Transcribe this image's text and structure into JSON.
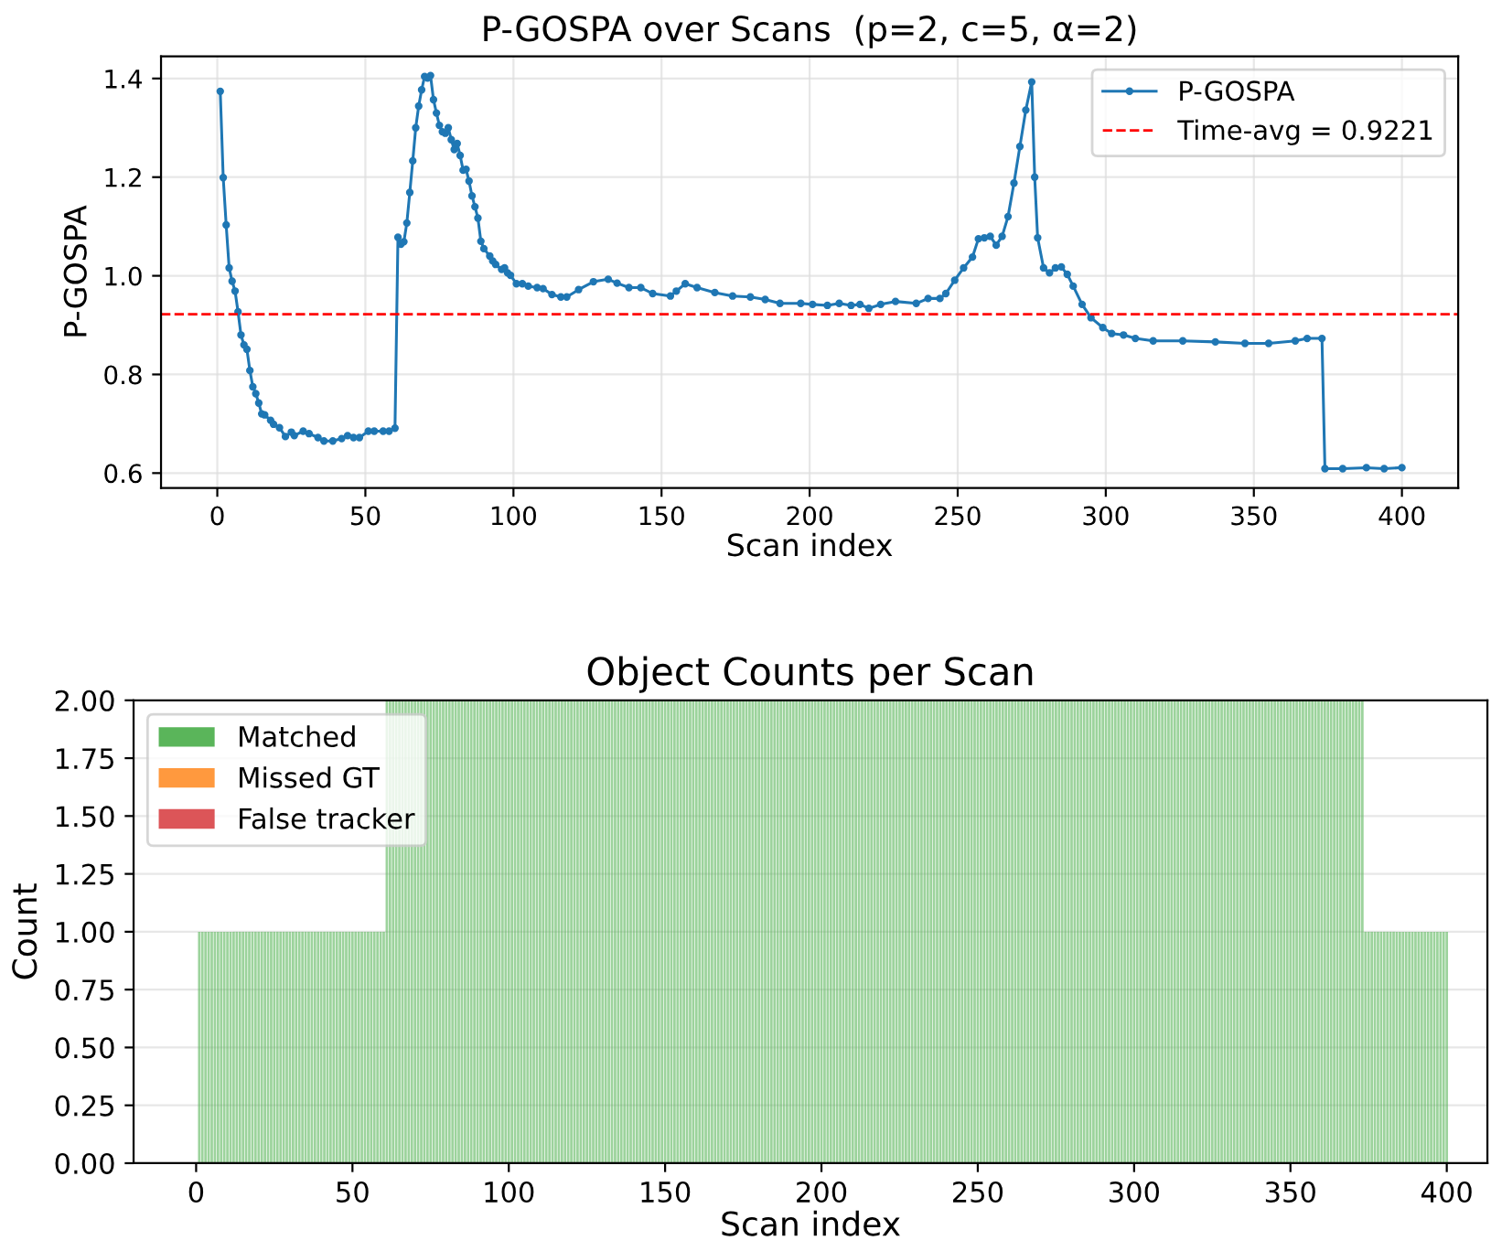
{
  "chart_data": [
    {
      "type": "line",
      "title": "P-GOSPA over Scans  (p=2, c=5, α=2)",
      "xlabel": "Scan index",
      "ylabel": "P-GOSPA",
      "xlim": [
        -19,
        419
      ],
      "xticks": [
        0,
        50,
        100,
        150,
        200,
        250,
        300,
        350,
        400
      ],
      "ylim": [
        0.57,
        1.445
      ],
      "yticks": [
        {
          "value": 0.6,
          "label": "0.6"
        },
        {
          "value": 0.8,
          "label": "0.8"
        },
        {
          "value": 1.0,
          "label": "1.0"
        },
        {
          "value": 1.2,
          "label": "1.2"
        },
        {
          "value": 1.4,
          "label": "1.4"
        }
      ],
      "grid": true,
      "legend": "top right",
      "marker": "circle",
      "line_style": "solid",
      "ref_lines": [
        {
          "axis": "y",
          "value": 0.9221,
          "label": "Time-avg = 0.9221",
          "color": "#ff0000",
          "line_style": "dashed"
        }
      ],
      "series": [
        {
          "name": "P-GOSPA",
          "color": "#1f77b4",
          "x": [
            1,
            2,
            3,
            4,
            5,
            6,
            7,
            8,
            9,
            10,
            11,
            12,
            13,
            14,
            15,
            16,
            18,
            19,
            21,
            23,
            25,
            26,
            29,
            31,
            34,
            36,
            39,
            42,
            44,
            46,
            48,
            51,
            53,
            56,
            58,
            60,
            61,
            62,
            63,
            64,
            65,
            66,
            67,
            68,
            69,
            70,
            71,
            72,
            73,
            74,
            75,
            76,
            77,
            78,
            79,
            80,
            81,
            82,
            83,
            84,
            85,
            86,
            87,
            88,
            89,
            90,
            92,
            93,
            94,
            96,
            97,
            98,
            99,
            101,
            103,
            105,
            108,
            110,
            113,
            116,
            118,
            122,
            127,
            132,
            135,
            139,
            143,
            147,
            153,
            155,
            158,
            162,
            168,
            174,
            180,
            185,
            190,
            197,
            201,
            206,
            210,
            214,
            217,
            220,
            224,
            229,
            236,
            240,
            244,
            246,
            249,
            252,
            255,
            257,
            259,
            261,
            263,
            265,
            267,
            269,
            271,
            273,
            275,
            276,
            277,
            279,
            281,
            283,
            285,
            287,
            289,
            292,
            295,
            299,
            302,
            306,
            310,
            316,
            326,
            337,
            347,
            355,
            364,
            368,
            373,
            374,
            380,
            388,
            394,
            400
          ],
          "values": [
            1.374,
            1.199,
            1.103,
            1.016,
            0.989,
            0.969,
            0.927,
            0.88,
            0.86,
            0.851,
            0.808,
            0.775,
            0.761,
            0.742,
            0.72,
            0.718,
            0.707,
            0.699,
            0.692,
            0.674,
            0.683,
            0.676,
            0.685,
            0.68,
            0.672,
            0.665,
            0.665,
            0.67,
            0.676,
            0.672,
            0.672,
            0.685,
            0.685,
            0.685,
            0.685,
            0.691,
            1.078,
            1.064,
            1.069,
            1.107,
            1.169,
            1.233,
            1.3,
            1.344,
            1.377,
            1.404,
            1.401,
            1.406,
            1.357,
            1.33,
            1.305,
            1.292,
            1.289,
            1.3,
            1.276,
            1.256,
            1.268,
            1.244,
            1.214,
            1.216,
            1.192,
            1.162,
            1.14,
            1.117,
            1.07,
            1.055,
            1.04,
            1.03,
            1.023,
            1.013,
            1.016,
            1.006,
            1.001,
            0.984,
            0.984,
            0.979,
            0.976,
            0.974,
            0.962,
            0.957,
            0.957,
            0.972,
            0.988,
            0.993,
            0.985,
            0.976,
            0.976,
            0.964,
            0.959,
            0.969,
            0.984,
            0.976,
            0.966,
            0.959,
            0.957,
            0.952,
            0.944,
            0.944,
            0.942,
            0.94,
            0.944,
            0.94,
            0.942,
            0.934,
            0.942,
            0.948,
            0.944,
            0.954,
            0.954,
            0.964,
            0.991,
            1.016,
            1.038,
            1.075,
            1.077,
            1.08,
            1.062,
            1.08,
            1.12,
            1.188,
            1.262,
            1.336,
            1.393,
            1.2,
            1.077,
            1.016,
            1.006,
            1.016,
            1.018,
            1.003,
            0.979,
            0.942,
            0.915,
            0.895,
            0.883,
            0.88,
            0.873,
            0.868,
            0.868,
            0.866,
            0.863,
            0.863,
            0.868,
            0.873,
            0.873,
            0.609,
            0.609,
            0.611,
            0.609,
            0.611
          ]
        }
      ]
    },
    {
      "type": "bar",
      "stacked": true,
      "title": "Object Counts per Scan",
      "xlabel": "Scan index",
      "ylabel": "Count",
      "xlim": [
        -20,
        413
      ],
      "xticks": [
        0,
        50,
        100,
        150,
        200,
        250,
        300,
        350,
        400
      ],
      "ylim": [
        0,
        2
      ],
      "yticks": [
        {
          "value": 0,
          "label": "0.00"
        },
        {
          "value": 0.25,
          "label": "0.25"
        },
        {
          "value": 0.5,
          "label": "0.50"
        },
        {
          "value": 0.75,
          "label": "0.75"
        },
        {
          "value": 1,
          "label": "1.00"
        },
        {
          "value": 1.25,
          "label": "1.25"
        },
        {
          "value": 1.5,
          "label": "1.50"
        },
        {
          "value": 1.75,
          "label": "1.75"
        },
        {
          "value": 2,
          "label": "2.00"
        }
      ],
      "grid": "y",
      "legend": "top left",
      "x": [
        1,
        2,
        3,
        4,
        5,
        6,
        7,
        8,
        9,
        10,
        11,
        12,
        13,
        14,
        15,
        16,
        17,
        18,
        19,
        20,
        21,
        22,
        23,
        24,
        25,
        26,
        27,
        28,
        29,
        30,
        31,
        32,
        33,
        34,
        35,
        36,
        37,
        38,
        39,
        40,
        41,
        42,
        43,
        44,
        45,
        46,
        47,
        48,
        49,
        50,
        51,
        52,
        53,
        54,
        55,
        56,
        57,
        58,
        59,
        60,
        61,
        62,
        63,
        64,
        65,
        66,
        67,
        68,
        69,
        70,
        71,
        72,
        73,
        74,
        75,
        76,
        77,
        78,
        79,
        80,
        81,
        82,
        83,
        84,
        85,
        86,
        87,
        88,
        89,
        90,
        91,
        92,
        93,
        94,
        95,
        96,
        97,
        98,
        99,
        100,
        101,
        102,
        103,
        104,
        105,
        106,
        107,
        108,
        109,
        110,
        111,
        112,
        113,
        114,
        115,
        116,
        117,
        118,
        119,
        120,
        121,
        122,
        123,
        124,
        125,
        126,
        127,
        128,
        129,
        130,
        131,
        132,
        133,
        134,
        135,
        136,
        137,
        138,
        139,
        140,
        141,
        142,
        143,
        144,
        145,
        146,
        147,
        148,
        149,
        150,
        151,
        152,
        153,
        154,
        155,
        156,
        157,
        158,
        159,
        160,
        161,
        162,
        163,
        164,
        165,
        166,
        167,
        168,
        169,
        170,
        171,
        172,
        173,
        174,
        175,
        176,
        177,
        178,
        179,
        180,
        181,
        182,
        183,
        184,
        185,
        186,
        187,
        188,
        189,
        190,
        191,
        192,
        193,
        194,
        195,
        196,
        197,
        198,
        199,
        200,
        201,
        202,
        203,
        204,
        205,
        206,
        207,
        208,
        209,
        210,
        211,
        212,
        213,
        214,
        215,
        216,
        217,
        218,
        219,
        220,
        221,
        222,
        223,
        224,
        225,
        226,
        227,
        228,
        229,
        230,
        231,
        232,
        233,
        234,
        235,
        236,
        237,
        238,
        239,
        240,
        241,
        242,
        243,
        244,
        245,
        246,
        247,
        248,
        249,
        250,
        251,
        252,
        253,
        254,
        255,
        256,
        257,
        258,
        259,
        260,
        261,
        262,
        263,
        264,
        265,
        266,
        267,
        268,
        269,
        270,
        271,
        272,
        273,
        274,
        275,
        276,
        277,
        278,
        279,
        280,
        281,
        282,
        283,
        284,
        285,
        286,
        287,
        288,
        289,
        290,
        291,
        292,
        293,
        294,
        295,
        296,
        297,
        298,
        299,
        300,
        301,
        302,
        303,
        304,
        305,
        306,
        307,
        308,
        309,
        310,
        311,
        312,
        313,
        314,
        315,
        316,
        317,
        318,
        319,
        320,
        321,
        322,
        323,
        324,
        325,
        326,
        327,
        328,
        329,
        330,
        331,
        332,
        333,
        334,
        335,
        336,
        337,
        338,
        339,
        340,
        341,
        342,
        343,
        344,
        345,
        346,
        347,
        348,
        349,
        350,
        351,
        352,
        353,
        354,
        355,
        356,
        357,
        358,
        359,
        360,
        361,
        362,
        363,
        364,
        365,
        366,
        367,
        368,
        369,
        370,
        371,
        372,
        373,
        374,
        375,
        376,
        377,
        378,
        379,
        380,
        381,
        382,
        383,
        384,
        385,
        386,
        387,
        388,
        389,
        390,
        391,
        392,
        393,
        394,
        395,
        396,
        397,
        398,
        399,
        400
      ],
      "series": [
        {
          "name": "Matched",
          "color": "#5ab55a",
          "values": [
            1,
            1,
            1,
            1,
            1,
            1,
            1,
            1,
            1,
            1,
            1,
            1,
            1,
            1,
            1,
            1,
            1,
            1,
            1,
            1,
            1,
            1,
            1,
            1,
            1,
            1,
            1,
            1,
            1,
            1,
            1,
            1,
            1,
            1,
            1,
            1,
            1,
            1,
            1,
            1,
            1,
            1,
            1,
            1,
            1,
            1,
            1,
            1,
            1,
            1,
            1,
            1,
            1,
            1,
            1,
            1,
            1,
            1,
            1,
            1,
            2,
            2,
            2,
            2,
            2,
            2,
            2,
            2,
            2,
            2,
            2,
            2,
            2,
            2,
            2,
            2,
            2,
            2,
            2,
            2,
            2,
            2,
            2,
            2,
            2,
            2,
            2,
            2,
            2,
            2,
            2,
            2,
            2,
            2,
            2,
            2,
            2,
            2,
            2,
            2,
            2,
            2,
            2,
            2,
            2,
            2,
            2,
            2,
            2,
            2,
            2,
            2,
            2,
            2,
            2,
            2,
            2,
            2,
            2,
            2,
            2,
            2,
            2,
            2,
            2,
            2,
            2,
            2,
            2,
            2,
            2,
            2,
            2,
            2,
            2,
            2,
            2,
            2,
            2,
            2,
            2,
            2,
            2,
            2,
            2,
            2,
            2,
            2,
            2,
            2,
            2,
            2,
            2,
            2,
            2,
            2,
            2,
            2,
            2,
            2,
            2,
            2,
            2,
            2,
            2,
            2,
            2,
            2,
            2,
            2,
            2,
            2,
            2,
            2,
            2,
            2,
            2,
            2,
            2,
            2,
            2,
            2,
            2,
            2,
            2,
            2,
            2,
            2,
            2,
            2,
            2,
            2,
            2,
            2,
            2,
            2,
            2,
            2,
            2,
            2,
            2,
            2,
            2,
            2,
            2,
            2,
            2,
            2,
            2,
            2,
            2,
            2,
            2,
            2,
            2,
            2,
            2,
            2,
            2,
            2,
            2,
            2,
            2,
            2,
            2,
            2,
            2,
            2,
            2,
            2,
            2,
            2,
            2,
            2,
            2,
            2,
            2,
            2,
            2,
            2,
            2,
            2,
            2,
            2,
            2,
            2,
            2,
            2,
            2,
            2,
            2,
            2,
            2,
            2,
            2,
            2,
            2,
            2,
            2,
            2,
            2,
            2,
            2,
            2,
            2,
            2,
            2,
            2,
            2,
            2,
            2,
            2,
            2,
            2,
            2,
            2,
            2,
            2,
            2,
            2,
            2,
            2,
            2,
            2,
            2,
            2,
            2,
            2,
            2,
            2,
            2,
            2,
            2,
            2,
            2,
            2,
            2,
            2,
            2,
            2,
            2,
            2,
            2,
            2,
            2,
            2,
            2,
            2,
            2,
            2,
            2,
            2,
            2,
            2,
            2,
            2,
            2,
            2,
            2,
            2,
            2,
            2,
            2,
            2,
            2,
            2,
            2,
            2,
            2,
            2,
            2,
            2,
            2,
            2,
            2,
            2,
            2,
            2,
            2,
            2,
            2,
            2,
            2,
            2,
            2,
            2,
            2,
            2,
            2,
            2,
            2,
            2,
            2,
            2,
            2,
            2,
            2,
            2,
            2,
            2,
            2,
            2,
            2,
            2,
            2,
            2,
            2,
            2,
            2,
            2,
            2,
            2,
            2,
            1,
            1,
            1,
            1,
            1,
            1,
            1,
            1,
            1,
            1,
            1,
            1,
            1,
            1,
            1,
            1,
            1,
            1,
            1,
            1,
            1,
            1,
            1,
            1,
            1,
            1,
            1
          ]
        },
        {
          "name": "Missed GT",
          "color": "#ff993e",
          "values": [
            0,
            0,
            0,
            0,
            0,
            0,
            0,
            0,
            0,
            0,
            0,
            0,
            0,
            0,
            0,
            0,
            0,
            0,
            0,
            0,
            0,
            0,
            0,
            0,
            0,
            0,
            0,
            0,
            0,
            0,
            0,
            0,
            0,
            0,
            0,
            0,
            0,
            0,
            0,
            0,
            0,
            0,
            0,
            0,
            0,
            0,
            0,
            0,
            0,
            0,
            0,
            0,
            0,
            0,
            0,
            0,
            0,
            0,
            0,
            0,
            0,
            0,
            0,
            0,
            0,
            0,
            0,
            0,
            0,
            0,
            0,
            0,
            0,
            0,
            0,
            0,
            0,
            0,
            0,
            0,
            0,
            0,
            0,
            0,
            0,
            0,
            0,
            0,
            0,
            0,
            0,
            0,
            0,
            0,
            0,
            0,
            0,
            0,
            0,
            0,
            0,
            0,
            0,
            0,
            0,
            0,
            0,
            0,
            0,
            0,
            0,
            0,
            0,
            0,
            0,
            0,
            0,
            0,
            0,
            0,
            0,
            0,
            0,
            0,
            0,
            0,
            0,
            0,
            0,
            0,
            0,
            0,
            0,
            0,
            0,
            0,
            0,
            0,
            0,
            0,
            0,
            0,
            0,
            0,
            0,
            0,
            0,
            0,
            0,
            0,
            0,
            0,
            0,
            0,
            0,
            0,
            0,
            0,
            0,
            0,
            0,
            0,
            0,
            0,
            0,
            0,
            0,
            0,
            0,
            0,
            0,
            0,
            0,
            0,
            0,
            0,
            0,
            0,
            0,
            0,
            0,
            0,
            0,
            0,
            0,
            0,
            0,
            0,
            0,
            0,
            0,
            0,
            0,
            0,
            0,
            0,
            0,
            0,
            0,
            0,
            0,
            0,
            0,
            0,
            0,
            0,
            0,
            0,
            0,
            0,
            0,
            0,
            0,
            0,
            0,
            0,
            0,
            0,
            0,
            0,
            0,
            0,
            0,
            0,
            0,
            0,
            0,
            0,
            0,
            0,
            0,
            0,
            0,
            0,
            0,
            0,
            0,
            0,
            0,
            0,
            0,
            0,
            0,
            0,
            0,
            0,
            0,
            0,
            0,
            0,
            0,
            0,
            0,
            0,
            0,
            0,
            0,
            0,
            0,
            0,
            0,
            0,
            0,
            0,
            0,
            0,
            0,
            0,
            0,
            0,
            0,
            0,
            0,
            0,
            0,
            0,
            0,
            0,
            0,
            0,
            0,
            0,
            0,
            0,
            0,
            0,
            0,
            0,
            0,
            0,
            0,
            0,
            0,
            0,
            0,
            0,
            0,
            0,
            0,
            0,
            0,
            0,
            0,
            0,
            0,
            0,
            0,
            0,
            0,
            0,
            0,
            0,
            0,
            0,
            0,
            0,
            0,
            0,
            0,
            0,
            0,
            0,
            0,
            0,
            0,
            0,
            0,
            0,
            0,
            0,
            0,
            0,
            0,
            0,
            0,
            0,
            0,
            0,
            0,
            0,
            0,
            0,
            0,
            0,
            0,
            0,
            0,
            0,
            0,
            0,
            0,
            0,
            0,
            0,
            0,
            0,
            0,
            0,
            0,
            0,
            0,
            0,
            0,
            0,
            0,
            0,
            0,
            0,
            0,
            0,
            0,
            0,
            0,
            0,
            0,
            0,
            0,
            0,
            0,
            0,
            0,
            0,
            0,
            0,
            0,
            0,
            0,
            0,
            0,
            0,
            0,
            0,
            0,
            0,
            0,
            0,
            0,
            0,
            0,
            0
          ]
        },
        {
          "name": "False tracker",
          "color": "#dc5558",
          "values": [
            0,
            0,
            0,
            0,
            0,
            0,
            0,
            0,
            0,
            0,
            0,
            0,
            0,
            0,
            0,
            0,
            0,
            0,
            0,
            0,
            0,
            0,
            0,
            0,
            0,
            0,
            0,
            0,
            0,
            0,
            0,
            0,
            0,
            0,
            0,
            0,
            0,
            0,
            0,
            0,
            0,
            0,
            0,
            0,
            0,
            0,
            0,
            0,
            0,
            0,
            0,
            0,
            0,
            0,
            0,
            0,
            0,
            0,
            0,
            0,
            0,
            0,
            0,
            0,
            0,
            0,
            0,
            0,
            0,
            0,
            0,
            0,
            0,
            0,
            0,
            0,
            0,
            0,
            0,
            0,
            0,
            0,
            0,
            0,
            0,
            0,
            0,
            0,
            0,
            0,
            0,
            0,
            0,
            0,
            0,
            0,
            0,
            0,
            0,
            0,
            0,
            0,
            0,
            0,
            0,
            0,
            0,
            0,
            0,
            0,
            0,
            0,
            0,
            0,
            0,
            0,
            0,
            0,
            0,
            0,
            0,
            0,
            0,
            0,
            0,
            0,
            0,
            0,
            0,
            0,
            0,
            0,
            0,
            0,
            0,
            0,
            0,
            0,
            0,
            0,
            0,
            0,
            0,
            0,
            0,
            0,
            0,
            0,
            0,
            0,
            0,
            0,
            0,
            0,
            0,
            0,
            0,
            0,
            0,
            0,
            0,
            0,
            0,
            0,
            0,
            0,
            0,
            0,
            0,
            0,
            0,
            0,
            0,
            0,
            0,
            0,
            0,
            0,
            0,
            0,
            0,
            0,
            0,
            0,
            0,
            0,
            0,
            0,
            0,
            0,
            0,
            0,
            0,
            0,
            0,
            0,
            0,
            0,
            0,
            0,
            0,
            0,
            0,
            0,
            0,
            0,
            0,
            0,
            0,
            0,
            0,
            0,
            0,
            0,
            0,
            0,
            0,
            0,
            0,
            0,
            0,
            0,
            0,
            0,
            0,
            0,
            0,
            0,
            0,
            0,
            0,
            0,
            0,
            0,
            0,
            0,
            0,
            0,
            0,
            0,
            0,
            0,
            0,
            0,
            0,
            0,
            0,
            0,
            0,
            0,
            0,
            0,
            0,
            0,
            0,
            0,
            0,
            0,
            0,
            0,
            0,
            0,
            0,
            0,
            0,
            0,
            0,
            0,
            0,
            0,
            0,
            0,
            0,
            0,
            0,
            0,
            0,
            0,
            0,
            0,
            0,
            0,
            0,
            0,
            0,
            0,
            0,
            0,
            0,
            0,
            0,
            0,
            0,
            0,
            0,
            0,
            0,
            0,
            0,
            0,
            0,
            0,
            0,
            0,
            0,
            0,
            0,
            0,
            0,
            0,
            0,
            0,
            0,
            0,
            0,
            0,
            0,
            0,
            0,
            0,
            0,
            0,
            0,
            0,
            0,
            0,
            0,
            0,
            0,
            0,
            0,
            0,
            0,
            0,
            0,
            0,
            0,
            0,
            0,
            0,
            0,
            0,
            0,
            0,
            0,
            0,
            0,
            0,
            0,
            0,
            0,
            0,
            0,
            0,
            0,
            0,
            0,
            0,
            0,
            0,
            0,
            0,
            0,
            0,
            0,
            0,
            0,
            0,
            0,
            0,
            0,
            0,
            0,
            0,
            0,
            0,
            0,
            0,
            0,
            0,
            0,
            0,
            0,
            0,
            0,
            0,
            0,
            0,
            0,
            0,
            0,
            0,
            0,
            0,
            0,
            0,
            0,
            0,
            0,
            0
          ]
        }
      ]
    }
  ]
}
